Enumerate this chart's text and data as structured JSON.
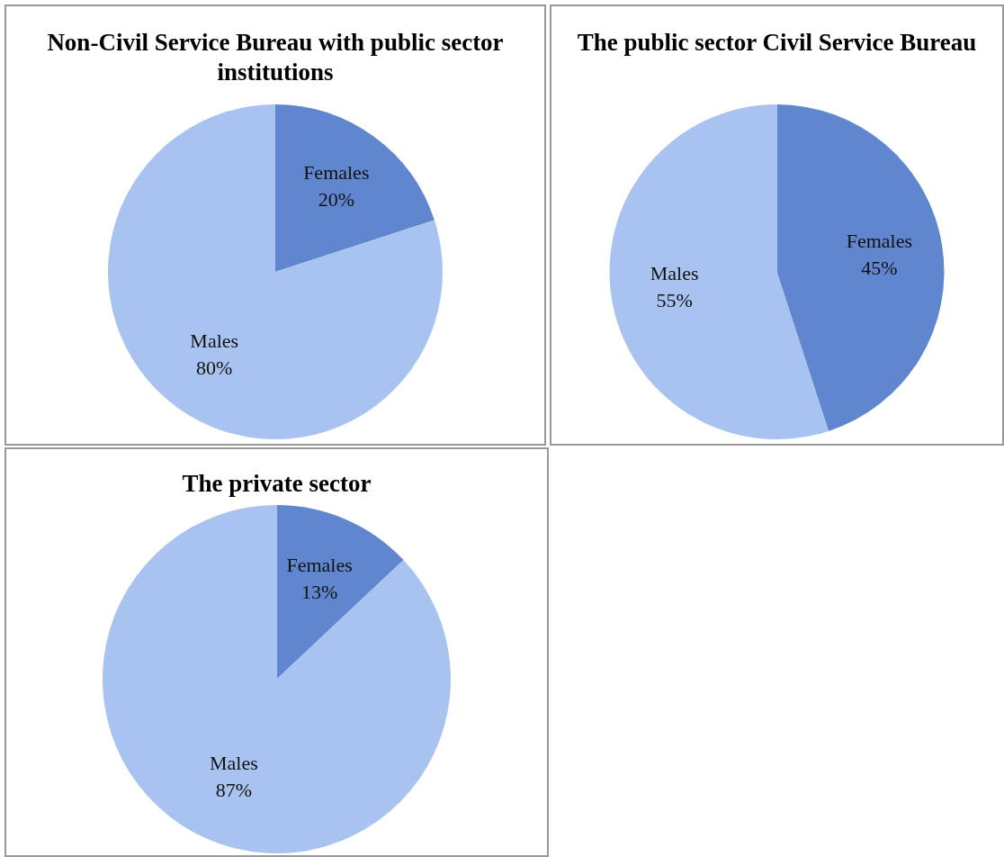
{
  "chart_data": [
    {
      "type": "pie",
      "title": "Non-Civil Service Bureau with public sector institutions",
      "categories": [
        "Females",
        "Males"
      ],
      "values": [
        20,
        80
      ],
      "value_labels": [
        "20%",
        "80%"
      ],
      "colors": [
        "#5f86cf",
        "#a9c3f0"
      ],
      "legend": false
    },
    {
      "type": "pie",
      "title": "The public sector Civil Service Bureau",
      "categories": [
        "Females",
        "Males"
      ],
      "values": [
        45,
        55
      ],
      "value_labels": [
        "45%",
        "55%"
      ],
      "colors": [
        "#5f86cf",
        "#a9c3f0"
      ],
      "legend": false
    },
    {
      "type": "pie",
      "title": "The private sector",
      "categories": [
        "Females",
        "Males"
      ],
      "values": [
        13,
        87
      ],
      "value_labels": [
        "13%",
        "87%"
      ],
      "colors": [
        "#5f86cf",
        "#a9c3f0"
      ],
      "legend": false
    }
  ]
}
